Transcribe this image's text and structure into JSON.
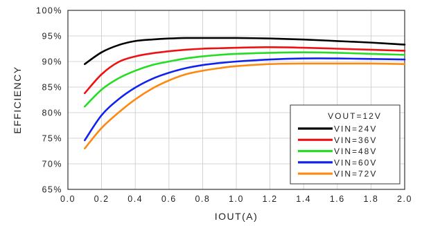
{
  "chart_data": {
    "type": "line",
    "title": "",
    "xlabel": "IOUT(A)",
    "ylabel": "EFFICIENCY",
    "xlim": [
      0.0,
      2.0
    ],
    "ylim": [
      65,
      100
    ],
    "x_ticks": [
      "0.0",
      "0.2",
      "0.4",
      "0.6",
      "0.8",
      "1.0",
      "1.2",
      "1.4",
      "1.6",
      "1.8",
      "2.0"
    ],
    "y_ticks": [
      "65%",
      "70%",
      "75%",
      "80%",
      "85%",
      "90%",
      "95%",
      "100%"
    ],
    "grid": true,
    "legend": {
      "title": "VOUT=12V",
      "position": "bottom-right"
    },
    "series": [
      {
        "name": "VIN=24V",
        "color": "#000000",
        "x": [
          0.1,
          0.2,
          0.3,
          0.4,
          0.5,
          0.6,
          0.7,
          0.8,
          0.9,
          1.0,
          1.2,
          1.4,
          1.6,
          1.8,
          2.0
        ],
        "y": [
          89.5,
          91.8,
          93.2,
          94.0,
          94.3,
          94.5,
          94.6,
          94.6,
          94.6,
          94.6,
          94.5,
          94.3,
          94.0,
          93.7,
          93.3
        ]
      },
      {
        "name": "VIN=36V",
        "color": "#ee1111",
        "x": [
          0.1,
          0.2,
          0.3,
          0.4,
          0.5,
          0.6,
          0.7,
          0.8,
          0.9,
          1.0,
          1.2,
          1.4,
          1.6,
          1.8,
          2.0
        ],
        "y": [
          83.8,
          87.5,
          89.9,
          91.0,
          91.6,
          92.0,
          92.3,
          92.5,
          92.6,
          92.7,
          92.8,
          92.7,
          92.5,
          92.3,
          92.1
        ]
      },
      {
        "name": "VIN=48V",
        "color": "#22dd22",
        "x": [
          0.1,
          0.2,
          0.3,
          0.4,
          0.5,
          0.6,
          0.7,
          0.8,
          0.9,
          1.0,
          1.2,
          1.4,
          1.6,
          1.8,
          2.0
        ],
        "y": [
          81.2,
          84.5,
          86.7,
          88.2,
          89.3,
          90.0,
          90.6,
          91.0,
          91.3,
          91.5,
          91.7,
          91.8,
          91.7,
          91.5,
          91.3
        ]
      },
      {
        "name": "VIN=60V",
        "color": "#1122ee",
        "x": [
          0.1,
          0.2,
          0.3,
          0.4,
          0.5,
          0.6,
          0.7,
          0.8,
          0.9,
          1.0,
          1.2,
          1.4,
          1.6,
          1.8,
          2.0
        ],
        "y": [
          74.6,
          79.5,
          82.6,
          84.9,
          86.6,
          87.8,
          88.7,
          89.3,
          89.7,
          90.0,
          90.4,
          90.6,
          90.6,
          90.5,
          90.4
        ]
      },
      {
        "name": "VIN=72V",
        "color": "#ff8811",
        "x": [
          0.1,
          0.2,
          0.3,
          0.4,
          0.5,
          0.6,
          0.7,
          0.8,
          0.9,
          1.0,
          1.2,
          1.4,
          1.6,
          1.8,
          2.0
        ],
        "y": [
          73.0,
          77.0,
          80.0,
          82.6,
          84.7,
          86.3,
          87.5,
          88.2,
          88.7,
          89.1,
          89.5,
          89.6,
          89.6,
          89.6,
          89.5
        ]
      }
    ]
  }
}
